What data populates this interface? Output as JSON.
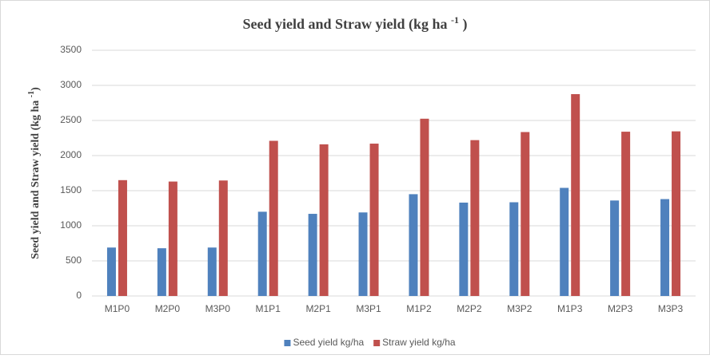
{
  "chart_data": {
    "type": "bar",
    "title": [
      "Seed yield and Straw yield (kg ha ",
      "-1",
      " )"
    ],
    "y_label": [
      "Seed yield and Straw yield (kg ha ",
      "-1",
      ")"
    ],
    "categories": [
      "M1P0",
      "M2P0",
      "M3P0",
      "M1P1",
      "M2P1",
      "M3P1",
      "M1P2",
      "M2P2",
      "M3P2",
      "M1P3",
      "M2P3",
      "M3P3"
    ],
    "series": [
      {
        "name": "Seed yield kg/ha",
        "color": "#4f81bd",
        "values": [
          690,
          680,
          690,
          1200,
          1170,
          1190,
          1450,
          1330,
          1335,
          1540,
          1360,
          1380
        ]
      },
      {
        "name": "Straw yield kg/ha",
        "color": "#c0504d",
        "values": [
          1650,
          1630,
          1645,
          2210,
          2160,
          2170,
          2525,
          2220,
          2335,
          2875,
          2340,
          2345
        ]
      }
    ],
    "ylim": [
      0,
      3500
    ],
    "yticks": [
      0,
      500,
      1000,
      1500,
      2000,
      2500,
      3000,
      3500
    ],
    "grid": true,
    "legend": "bottom"
  }
}
